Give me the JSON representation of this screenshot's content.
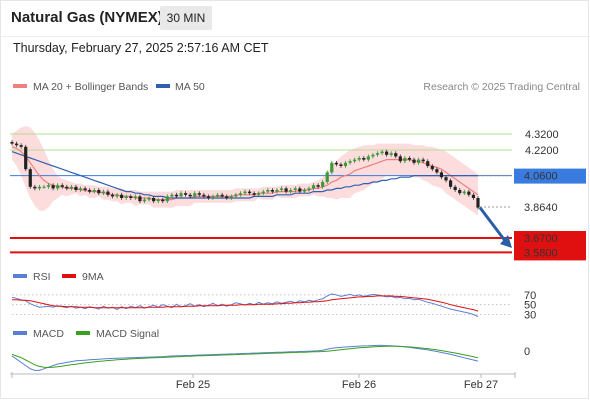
{
  "header": {
    "title": "Natural Gas (NYMEX)",
    "interval": "30 MIN",
    "timestamp": "Thursday, February 27, 2025 2:57:16 AM CET"
  },
  "legend": {
    "ma20_bb": "MA 20 + Bollinger Bands",
    "ma50": "MA 50",
    "credit": "Research © 2025 Trading Central"
  },
  "colors": {
    "ma20": "#f08080",
    "ma50": "#3060b0",
    "bollinger_fill": "#fcd6d6",
    "resistance": "#b7dd95",
    "pivot": "#3a7be0",
    "support": "#e01010",
    "rsi": "#5b7fd4",
    "rsi_ma": "#e01010",
    "macd": "#5b7fd4",
    "macd_signal": "#3aa020"
  },
  "chart_data": [
    {
      "type": "candlestick",
      "title": "",
      "ylim": [
        3.52,
        4.42
      ],
      "x_ticks": [
        "Feb 25",
        "Feb 26",
        "Feb 27"
      ],
      "levels": [
        {
          "label": "4.3200",
          "value": 4.32,
          "kind": "resistance"
        },
        {
          "label": "4.2200",
          "value": 4.22,
          "kind": "resistance"
        },
        {
          "label": "4.0600",
          "value": 4.06,
          "kind": "pivot"
        },
        {
          "label": "3.8640",
          "value": 3.864,
          "kind": "last"
        },
        {
          "label": "3.6700",
          "value": 3.67,
          "kind": "support"
        },
        {
          "label": "3.5800",
          "value": 3.58,
          "kind": "support"
        }
      ],
      "close": [
        4.26,
        4.25,
        4.24,
        4.1,
        3.99,
        3.98,
        3.99,
        3.99,
        4,
        3.98,
        4,
        3.99,
        3.98,
        3.99,
        3.97,
        3.98,
        3.97,
        3.96,
        3.97,
        3.95,
        3.96,
        3.94,
        3.93,
        3.94,
        3.92,
        3.93,
        3.92,
        3.93,
        3.9,
        3.91,
        3.92,
        3.9,
        3.91,
        3.9,
        3.93,
        3.94,
        3.93,
        3.95,
        3.94,
        3.93,
        3.95,
        3.94,
        3.93,
        3.92,
        3.93,
        3.94,
        3.93,
        3.92,
        3.93,
        3.94,
        3.95,
        3.96,
        3.95,
        3.94,
        3.95,
        3.96,
        3.97,
        3.96,
        3.97,
        3.98,
        3.96,
        3.97,
        3.98,
        3.96,
        3.97,
        3.98,
        4,
        3.99,
        4.02,
        4.08,
        4.14,
        4.13,
        4.12,
        4.14,
        4.15,
        4.16,
        4.17,
        4.16,
        4.18,
        4.19,
        4.2,
        4.21,
        4.19,
        4.2,
        4.18,
        4.15,
        4.17,
        4.16,
        4.14,
        4.16,
        4.15,
        4.12,
        4.1,
        4.08,
        4.05,
        4.03,
        3.99,
        3.97,
        3.95,
        3.96,
        3.94,
        3.92,
        3.86
      ],
      "ma20": [
        4.24,
        4.23,
        4.21,
        4.18,
        4.14,
        4.1,
        4.06,
        4.03,
        4.01,
        4,
        3.99,
        3.99,
        3.98,
        3.98,
        3.98,
        3.97,
        3.97,
        3.96,
        3.96,
        3.96,
        3.95,
        3.95,
        3.94,
        3.94,
        3.93,
        3.93,
        3.93,
        3.92,
        3.92,
        3.92,
        3.92,
        3.91,
        3.91,
        3.91,
        3.91,
        3.91,
        3.92,
        3.92,
        3.92,
        3.92,
        3.93,
        3.93,
        3.93,
        3.93,
        3.93,
        3.93,
        3.93,
        3.93,
        3.93,
        3.94,
        3.94,
        3.94,
        3.94,
        3.94,
        3.95,
        3.95,
        3.95,
        3.95,
        3.96,
        3.96,
        3.96,
        3.96,
        3.96,
        3.97,
        3.97,
        3.97,
        3.98,
        3.98,
        3.99,
        4,
        4.02,
        4.03,
        4.05,
        4.06,
        4.07,
        4.09,
        4.1,
        4.11,
        4.12,
        4.13,
        4.14,
        4.15,
        4.16,
        4.16,
        4.16,
        4.16,
        4.16,
        4.16,
        4.15,
        4.15,
        4.14,
        4.13,
        4.12,
        4.11,
        4.1,
        4.08,
        4.06,
        4.04,
        4.02,
        4,
        3.98,
        3.96,
        3.94
      ],
      "bb_upper": [
        4.32,
        4.34,
        4.36,
        4.37,
        4.36,
        4.33,
        4.28,
        4.22,
        4.16,
        4.1,
        4.06,
        4.04,
        4.03,
        4.02,
        4.01,
        4.01,
        4,
        4,
        4,
        3.99,
        3.99,
        3.99,
        3.98,
        3.98,
        3.98,
        3.97,
        3.97,
        3.97,
        3.96,
        3.96,
        3.96,
        3.96,
        3.96,
        3.96,
        3.96,
        3.96,
        3.97,
        3.97,
        3.97,
        3.97,
        3.97,
        3.97,
        3.97,
        3.97,
        3.97,
        3.97,
        3.97,
        3.97,
        3.97,
        3.98,
        3.98,
        3.98,
        3.98,
        3.98,
        3.98,
        3.99,
        3.99,
        3.99,
        3.99,
        4,
        4,
        4,
        4,
        4.01,
        4.01,
        4.01,
        4.02,
        4.03,
        4.05,
        4.08,
        4.12,
        4.15,
        4.18,
        4.2,
        4.22,
        4.23,
        4.24,
        4.25,
        4.25,
        4.25,
        4.26,
        4.26,
        4.26,
        4.26,
        4.26,
        4.26,
        4.26,
        4.26,
        4.25,
        4.25,
        4.25,
        4.24,
        4.24,
        4.23,
        4.22,
        4.21,
        4.19,
        4.17,
        4.15,
        4.13,
        4.11,
        4.09,
        4.07
      ],
      "bb_lower": [
        4.16,
        4.12,
        4.06,
        3.99,
        3.92,
        3.87,
        3.84,
        3.84,
        3.86,
        3.9,
        3.92,
        3.94,
        3.93,
        3.94,
        3.95,
        3.93,
        3.94,
        3.92,
        3.92,
        3.93,
        3.91,
        3.91,
        3.9,
        3.9,
        3.88,
        3.89,
        3.89,
        3.87,
        3.88,
        3.88,
        3.88,
        3.86,
        3.86,
        3.86,
        3.86,
        3.86,
        3.87,
        3.87,
        3.87,
        3.87,
        3.89,
        3.89,
        3.89,
        3.89,
        3.89,
        3.89,
        3.89,
        3.89,
        3.89,
        3.9,
        3.9,
        3.9,
        3.9,
        3.9,
        3.92,
        3.91,
        3.91,
        3.91,
        3.93,
        3.92,
        3.92,
        3.92,
        3.92,
        3.93,
        3.93,
        3.93,
        3.94,
        3.93,
        3.93,
        3.92,
        3.92,
        3.91,
        3.92,
        3.92,
        3.92,
        3.95,
        3.96,
        3.97,
        3.99,
        4.01,
        4.02,
        4.04,
        4.06,
        4.06,
        4.06,
        4.06,
        4.06,
        4.06,
        4.05,
        4.05,
        4.03,
        4.02,
        4,
        3.99,
        3.98,
        3.95,
        3.93,
        3.91,
        3.89,
        3.87,
        3.85,
        3.83,
        3.81
      ],
      "ma50": [
        4.21,
        4.2,
        4.19,
        4.18,
        4.17,
        4.16,
        4.15,
        4.14,
        4.13,
        4.12,
        4.11,
        4.1,
        4.09,
        4.08,
        4.07,
        4.06,
        4.05,
        4.04,
        4.03,
        4.02,
        4.01,
        4,
        3.99,
        3.98,
        3.97,
        3.96,
        3.96,
        3.95,
        3.95,
        3.94,
        3.94,
        3.93,
        3.93,
        3.93,
        3.92,
        3.92,
        3.92,
        3.92,
        3.92,
        3.92,
        3.92,
        3.92,
        3.92,
        3.92,
        3.92,
        3.92,
        3.92,
        3.92,
        3.92,
        3.92,
        3.92,
        3.92,
        3.92,
        3.93,
        3.93,
        3.93,
        3.93,
        3.93,
        3.94,
        3.94,
        3.94,
        3.94,
        3.95,
        3.95,
        3.95,
        3.95,
        3.96,
        3.96,
        3.96,
        3.97,
        3.97,
        3.98,
        3.98,
        3.99,
        3.99,
        4,
        4,
        4.01,
        4.01,
        4.02,
        4.02,
        4.03,
        4.03,
        4.04,
        4.04,
        4.05,
        4.05,
        4.05,
        4.06,
        4.06,
        4.06,
        4.06,
        4.06,
        4.06,
        4.06,
        4.06,
        4.06,
        4.06,
        4.06,
        4.06,
        4.06,
        4.06,
        4.06
      ]
    },
    {
      "type": "line",
      "title": "RSI",
      "ylim": [
        25,
        80
      ],
      "y_ticks": [
        70,
        50,
        30
      ],
      "series": [
        {
          "name": "RSI",
          "values": [
            65,
            63,
            60,
            58,
            52,
            48,
            45,
            46,
            47,
            45,
            48,
            46,
            44,
            47,
            43,
            45,
            42,
            46,
            44,
            41,
            47,
            43,
            45,
            40,
            46,
            42,
            47,
            44,
            48,
            43,
            46,
            49,
            45,
            50,
            47,
            44,
            51,
            46,
            48,
            52,
            47,
            50,
            46,
            49,
            53,
            48,
            51,
            47,
            50,
            54,
            52,
            49,
            53,
            50,
            55,
            51,
            54,
            52,
            56,
            53,
            55,
            57,
            54,
            58,
            56,
            59,
            57,
            60,
            62,
            68,
            72,
            70,
            67,
            69,
            71,
            68,
            70,
            67,
            69,
            71,
            70,
            68,
            66,
            67,
            64,
            65,
            62,
            63,
            60,
            61,
            58,
            55,
            53,
            50,
            47,
            44,
            41,
            39,
            37,
            35,
            33,
            30,
            26
          ]
        },
        {
          "name": "9MA",
          "values": [
            60,
            60,
            59,
            59,
            58,
            56,
            54,
            52,
            50,
            48,
            47,
            47,
            46,
            46,
            46,
            45,
            45,
            45,
            44,
            44,
            44,
            44,
            44,
            44,
            44,
            44,
            44,
            44,
            44,
            44,
            45,
            45,
            45,
            45,
            46,
            46,
            46,
            46,
            47,
            47,
            47,
            48,
            48,
            48,
            48,
            48,
            49,
            49,
            49,
            49,
            50,
            50,
            50,
            50,
            51,
            51,
            51,
            51,
            52,
            52,
            53,
            53,
            54,
            54,
            55,
            55,
            56,
            56,
            57,
            58,
            60,
            61,
            62,
            63,
            64,
            65,
            66,
            66,
            67,
            67,
            68,
            68,
            68,
            68,
            67,
            67,
            66,
            65,
            64,
            63,
            62,
            61,
            59,
            57,
            55,
            53,
            50,
            48,
            46,
            44,
            42,
            40,
            37
          ]
        }
      ]
    },
    {
      "type": "line",
      "title": "MACD",
      "ylim": [
        -0.13,
        0.07
      ],
      "y_ticks": [
        0
      ],
      "series": [
        {
          "name": "MACD",
          "values": [
            -0.03,
            -0.05,
            -0.07,
            -0.09,
            -0.11,
            -0.12,
            -0.12,
            -0.11,
            -0.1,
            -0.09,
            -0.08,
            -0.075,
            -0.07,
            -0.065,
            -0.06,
            -0.058,
            -0.056,
            -0.054,
            -0.052,
            -0.05,
            -0.048,
            -0.046,
            -0.045,
            -0.044,
            -0.043,
            -0.042,
            -0.041,
            -0.04,
            -0.039,
            -0.038,
            -0.037,
            -0.036,
            -0.035,
            -0.034,
            -0.032,
            -0.03,
            -0.029,
            -0.028,
            -0.027,
            -0.026,
            -0.025,
            -0.024,
            -0.023,
            -0.022,
            -0.021,
            -0.02,
            -0.019,
            -0.018,
            -0.017,
            -0.016,
            -0.015,
            -0.014,
            -0.013,
            -0.012,
            -0.011,
            -0.01,
            -0.009,
            -0.008,
            -0.007,
            -0.006,
            -0.005,
            -0.004,
            -0.003,
            -0.002,
            -0.001,
            0,
            0.001,
            0.003,
            0.006,
            0.012,
            0.018,
            0.022,
            0.024,
            0.026,
            0.028,
            0.03,
            0.032,
            0.033,
            0.034,
            0.035,
            0.036,
            0.036,
            0.035,
            0.034,
            0.032,
            0.03,
            0.027,
            0.024,
            0.02,
            0.016,
            0.012,
            0.008,
            0.003,
            -0.002,
            -0.008,
            -0.014,
            -0.02,
            -0.027,
            -0.034,
            -0.041,
            -0.048,
            -0.055,
            -0.062
          ]
        },
        {
          "name": "MACD Signal",
          "values": [
            -0.02,
            -0.03,
            -0.04,
            -0.055,
            -0.07,
            -0.085,
            -0.095,
            -0.1,
            -0.102,
            -0.1,
            -0.097,
            -0.093,
            -0.089,
            -0.085,
            -0.081,
            -0.077,
            -0.073,
            -0.07,
            -0.067,
            -0.064,
            -0.061,
            -0.058,
            -0.056,
            -0.054,
            -0.052,
            -0.05,
            -0.048,
            -0.046,
            -0.045,
            -0.044,
            -0.042,
            -0.041,
            -0.04,
            -0.039,
            -0.038,
            -0.036,
            -0.035,
            -0.034,
            -0.032,
            -0.031,
            -0.03,
            -0.029,
            -0.028,
            -0.027,
            -0.026,
            -0.025,
            -0.024,
            -0.023,
            -0.022,
            -0.021,
            -0.02,
            -0.019,
            -0.018,
            -0.017,
            -0.016,
            -0.015,
            -0.014,
            -0.013,
            -0.012,
            -0.011,
            -0.01,
            -0.009,
            -0.008,
            -0.007,
            -0.006,
            -0.005,
            -0.004,
            -0.003,
            -0.002,
            0,
            0.003,
            0.006,
            0.009,
            0.012,
            0.015,
            0.018,
            0.021,
            0.023,
            0.025,
            0.027,
            0.029,
            0.03,
            0.031,
            0.031,
            0.031,
            0.03,
            0.029,
            0.027,
            0.025,
            0.022,
            0.019,
            0.016,
            0.012,
            0.008,
            0.004,
            -0.001,
            -0.006,
            -0.011,
            -0.017,
            -0.023,
            -0.029,
            -0.035,
            -0.041
          ]
        }
      ]
    }
  ]
}
